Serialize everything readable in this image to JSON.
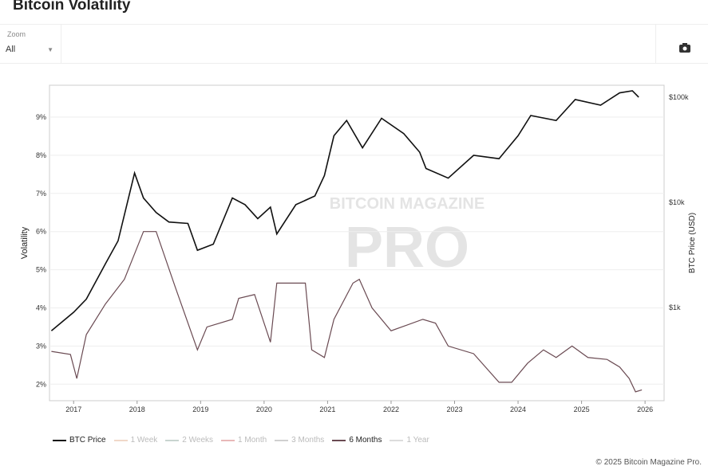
{
  "title": "Bitcoin Volatility",
  "zoom": {
    "label": "Zoom",
    "value": "All"
  },
  "copyright": "© 2025 Bitcoin Magazine Pro.",
  "watermark": "BITCOIN MAGAZINE PRO",
  "chart_data": {
    "type": "line",
    "ylabel": "Volatility",
    "y2label": "BTC Price (USD)",
    "xticks": [
      "2017",
      "2018",
      "2019",
      "2020",
      "2021",
      "2022",
      "2023",
      "2024",
      "2025",
      "2026"
    ],
    "yticks": [
      "2%",
      "3%",
      "4%",
      "5%",
      "6%",
      "7%",
      "8%",
      "9%"
    ],
    "y2ticks": [
      "$1k",
      "$10k",
      "$100k"
    ],
    "xlim": [
      2016.62,
      2026.3
    ],
    "ylim": [
      1.55,
      9.8
    ],
    "y2lim_log": [
      2.15,
      5.1
    ],
    "legend": [
      {
        "name": "BTC Price",
        "color": "#111111",
        "active": true
      },
      {
        "name": "1 Week",
        "color": "#f0d8c8",
        "active": false
      },
      {
        "name": "2 Weeks",
        "color": "#c8d4d0",
        "active": false
      },
      {
        "name": "1 Month",
        "color": "#e8b8b8",
        "active": false
      },
      {
        "name": "3 Months",
        "color": "#d0d0d0",
        "active": false
      },
      {
        "name": "6 Months",
        "color": "#6a4a52",
        "active": true
      },
      {
        "name": "1 Year",
        "color": "#dcdcdc",
        "active": false
      }
    ],
    "series": [
      {
        "name": "BTC Price",
        "axis": "right",
        "points": [
          [
            2016.65,
            600
          ],
          [
            2017.0,
            900
          ],
          [
            2017.2,
            1200
          ],
          [
            2017.5,
            2600
          ],
          [
            2017.7,
            4300
          ],
          [
            2017.96,
            19000
          ],
          [
            2018.1,
            11000
          ],
          [
            2018.3,
            8000
          ],
          [
            2018.5,
            6500
          ],
          [
            2018.8,
            6300
          ],
          [
            2018.95,
            3500
          ],
          [
            2019.2,
            4000
          ],
          [
            2019.5,
            11000
          ],
          [
            2019.7,
            9500
          ],
          [
            2019.9,
            7000
          ],
          [
            2020.1,
            9000
          ],
          [
            2020.2,
            5000
          ],
          [
            2020.5,
            9500
          ],
          [
            2020.8,
            11500
          ],
          [
            2020.95,
            18000
          ],
          [
            2021.1,
            43000
          ],
          [
            2021.3,
            60000
          ],
          [
            2021.55,
            33000
          ],
          [
            2021.85,
            63000
          ],
          [
            2022.2,
            45000
          ],
          [
            2022.45,
            30000
          ],
          [
            2022.55,
            21000
          ],
          [
            2022.9,
            17000
          ],
          [
            2023.3,
            28000
          ],
          [
            2023.7,
            26000
          ],
          [
            2024.0,
            43000
          ],
          [
            2024.2,
            67000
          ],
          [
            2024.6,
            60000
          ],
          [
            2024.9,
            95000
          ],
          [
            2025.3,
            84000
          ],
          [
            2025.6,
            110000
          ],
          [
            2025.8,
            115000
          ],
          [
            2025.9,
            100000
          ]
        ]
      },
      {
        "name": "6 Months",
        "axis": "left",
        "points": [
          [
            2016.65,
            2.86
          ],
          [
            2016.95,
            2.78
          ],
          [
            2017.05,
            2.15
          ],
          [
            2017.2,
            3.3
          ],
          [
            2017.5,
            4.1
          ],
          [
            2017.8,
            4.75
          ],
          [
            2018.1,
            6.0
          ],
          [
            2018.3,
            6.0
          ],
          [
            2018.6,
            4.55
          ],
          [
            2018.95,
            2.9
          ],
          [
            2019.1,
            3.5
          ],
          [
            2019.5,
            3.7
          ],
          [
            2019.6,
            4.25
          ],
          [
            2019.85,
            4.35
          ],
          [
            2020.1,
            3.1
          ],
          [
            2020.2,
            4.65
          ],
          [
            2020.65,
            4.65
          ],
          [
            2020.75,
            2.9
          ],
          [
            2020.95,
            2.7
          ],
          [
            2021.1,
            3.7
          ],
          [
            2021.4,
            4.65
          ],
          [
            2021.5,
            4.75
          ],
          [
            2021.7,
            4.0
          ],
          [
            2022.0,
            3.4
          ],
          [
            2022.5,
            3.7
          ],
          [
            2022.7,
            3.6
          ],
          [
            2022.9,
            3.0
          ],
          [
            2023.3,
            2.8
          ],
          [
            2023.7,
            2.05
          ],
          [
            2023.9,
            2.05
          ],
          [
            2024.15,
            2.55
          ],
          [
            2024.4,
            2.9
          ],
          [
            2024.6,
            2.7
          ],
          [
            2024.85,
            3.0
          ],
          [
            2025.1,
            2.7
          ],
          [
            2025.4,
            2.65
          ],
          [
            2025.6,
            2.45
          ],
          [
            2025.75,
            2.15
          ],
          [
            2025.85,
            1.8
          ],
          [
            2025.95,
            1.85
          ]
        ]
      }
    ]
  }
}
